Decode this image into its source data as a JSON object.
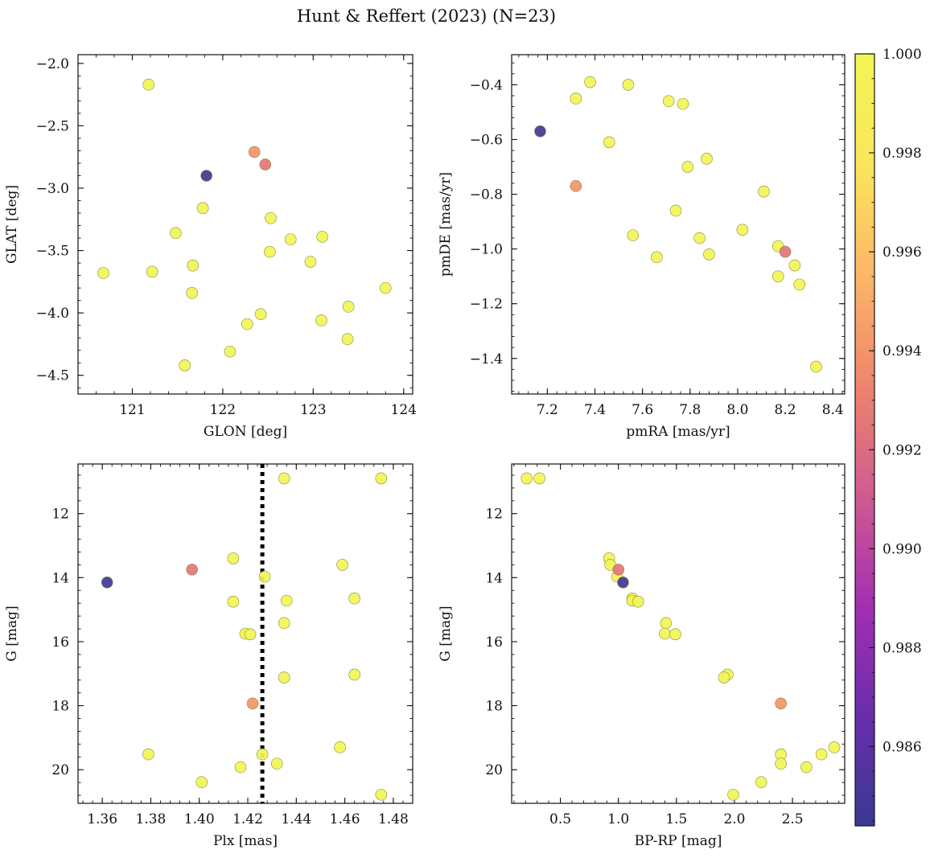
{
  "figure": {
    "title": "Hunt & Reffert (2023) (N=23)"
  },
  "colorbar": {
    "vmin": 0.9844,
    "vmax": 1.0,
    "ticks": [
      0.986,
      0.988,
      0.99,
      0.992,
      0.994,
      0.996,
      0.998,
      1.0
    ],
    "tick_labels": [
      "0.986",
      "0.988",
      "0.990",
      "0.992",
      "0.994",
      "0.996",
      "0.998",
      "1.000"
    ],
    "colormap": "plasma",
    "color_stops": [
      "#3a3991",
      "#6a2eac",
      "#a32fb3",
      "#d05b90",
      "#ee856c",
      "#fdb667",
      "#fae65a",
      "#f2f556"
    ]
  },
  "chart_data": [
    {
      "type": "scatter",
      "xlabel": "GLON [deg]",
      "ylabel": "GLAT [deg]",
      "xlim": [
        120.4,
        124.1
      ],
      "ylim": [
        -4.65,
        -1.93
      ],
      "yinvert": false,
      "xticks": [
        121,
        122,
        123,
        124
      ],
      "yticks": [
        -2.0,
        -2.5,
        -3.0,
        -3.5,
        -4.0,
        -4.5
      ],
      "x_tick_labels": [
        "121",
        "122",
        "123",
        "124"
      ],
      "y_tick_labels": [
        "−2.0",
        "−2.5",
        "−3.0",
        "−3.5",
        "−4.0",
        "−4.5"
      ],
      "x": [
        121.18,
        122.35,
        122.47,
        121.82,
        121.78,
        122.53,
        121.48,
        122.75,
        123.1,
        122.52,
        120.68,
        121.22,
        121.67,
        122.97,
        121.66,
        123.8,
        123.39,
        122.42,
        122.27,
        123.09,
        123.38,
        122.08,
        121.58
      ],
      "y": [
        -2.17,
        -2.71,
        -2.81,
        -2.9,
        -3.16,
        -3.24,
        -3.36,
        -3.41,
        -3.39,
        -3.51,
        -3.68,
        -3.67,
        -3.62,
        -3.59,
        -3.84,
        -3.8,
        -3.95,
        -4.01,
        -4.09,
        -4.06,
        -4.21,
        -4.31,
        -4.42
      ],
      "c": [
        1.0,
        0.994,
        0.9925,
        0.9846,
        1.0,
        1.0,
        1.0,
        1.0,
        1.0,
        1.0,
        1.0,
        1.0,
        1.0,
        1.0,
        1.0,
        1.0,
        1.0,
        1.0,
        1.0,
        1.0,
        1.0,
        1.0,
        1.0
      ],
      "vline": null
    },
    {
      "type": "scatter",
      "xlabel": "pmRA [mas/yr]",
      "ylabel": "pmDE [mas/yr]",
      "xlim": [
        7.05,
        8.45
      ],
      "ylim": [
        -1.53,
        -0.29
      ],
      "yinvert": false,
      "xticks": [
        7.2,
        7.4,
        7.6,
        7.8,
        8.0,
        8.2,
        8.4
      ],
      "yticks": [
        -0.4,
        -0.6,
        -0.8,
        -1.0,
        -1.2,
        -1.4
      ],
      "x_tick_labels": [
        "7.2",
        "7.4",
        "7.6",
        "7.8",
        "8.0",
        "8.2",
        "8.4"
      ],
      "y_tick_labels": [
        "−0.4",
        "−0.6",
        "−0.8",
        "−1.0",
        "−1.2",
        "−1.4"
      ],
      "x": [
        7.38,
        7.54,
        7.32,
        7.71,
        7.77,
        7.17,
        7.46,
        7.87,
        7.79,
        7.32,
        8.11,
        7.74,
        8.02,
        7.56,
        7.84,
        8.17,
        8.2,
        7.88,
        7.66,
        8.24,
        8.17,
        8.26,
        8.33
      ],
      "y": [
        -0.39,
        -0.4,
        -0.45,
        -0.46,
        -0.47,
        -0.57,
        -0.61,
        -0.67,
        -0.7,
        -0.77,
        -0.79,
        -0.86,
        -0.93,
        -0.95,
        -0.96,
        -0.99,
        -1.01,
        -1.02,
        -1.03,
        -1.06,
        -1.1,
        -1.13,
        -1.43
      ],
      "c": [
        1.0,
        1.0,
        1.0,
        1.0,
        1.0,
        0.9846,
        1.0,
        1.0,
        1.0,
        0.994,
        1.0,
        1.0,
        1.0,
        1.0,
        1.0,
        1.0,
        0.9925,
        1.0,
        1.0,
        1.0,
        1.0,
        1.0,
        1.0
      ],
      "vline": null
    },
    {
      "type": "scatter",
      "xlabel": "Plx [mas]",
      "ylabel": "G [mag]",
      "xlim": [
        1.35,
        1.488
      ],
      "ylim": [
        21.05,
        10.45
      ],
      "yinvert": true,
      "xticks": [
        1.36,
        1.38,
        1.4,
        1.42,
        1.44,
        1.46,
        1.48
      ],
      "yticks": [
        12,
        14,
        16,
        18,
        20
      ],
      "x_tick_labels": [
        "1.36",
        "1.38",
        "1.40",
        "1.42",
        "1.44",
        "1.46",
        "1.48"
      ],
      "y_tick_labels": [
        "12",
        "14",
        "16",
        "18",
        "20"
      ],
      "x": [
        1.435,
        1.475,
        1.414,
        1.459,
        1.397,
        1.427,
        1.362,
        1.414,
        1.436,
        1.464,
        1.435,
        1.419,
        1.421,
        1.464,
        1.435,
        1.422,
        1.379,
        1.458,
        1.426,
        1.432,
        1.417,
        1.401,
        1.475
      ],
      "y": [
        10.9,
        10.9,
        13.4,
        13.6,
        13.75,
        13.97,
        14.15,
        14.75,
        14.72,
        14.65,
        15.42,
        15.75,
        15.77,
        17.03,
        17.12,
        17.93,
        19.52,
        19.3,
        19.52,
        19.81,
        19.92,
        20.39,
        20.78
      ],
      "c": [
        1.0,
        1.0,
        1.0,
        1.0,
        0.9925,
        1.0,
        0.9846,
        1.0,
        1.0,
        1.0,
        1.0,
        1.0,
        1.0,
        1.0,
        1.0,
        0.994,
        1.0,
        1.0,
        1.0,
        1.0,
        1.0,
        1.0,
        1.0
      ],
      "vline": 1.426
    },
    {
      "type": "scatter",
      "xlabel": "BP-RP [mag]",
      "ylabel": "G [mag]",
      "xlim": [
        0.08,
        2.95
      ],
      "ylim": [
        21.05,
        10.45
      ],
      "yinvert": true,
      "xticks": [
        0.5,
        1.0,
        1.5,
        2.0,
        2.5
      ],
      "yticks": [
        12,
        14,
        16,
        18,
        20
      ],
      "x_tick_labels": [
        "0.5",
        "1.0",
        "1.5",
        "2.0",
        "2.5"
      ],
      "y_tick_labels": [
        "12",
        "14",
        "16",
        "18",
        "20"
      ],
      "x": [
        0.21,
        0.32,
        0.92,
        0.93,
        1.0,
        0.99,
        1.04,
        1.12,
        1.12,
        1.17,
        1.41,
        1.4,
        1.49,
        1.94,
        1.91,
        2.4,
        2.4,
        2.86,
        2.4,
        2.75,
        2.62,
        2.23,
        1.99
      ],
      "y": [
        10.9,
        10.9,
        13.4,
        13.6,
        13.75,
        13.97,
        14.15,
        14.65,
        14.72,
        14.75,
        15.42,
        15.75,
        15.77,
        17.03,
        17.12,
        17.93,
        19.52,
        19.3,
        19.81,
        19.52,
        19.92,
        20.39,
        20.78
      ],
      "c": [
        1.0,
        1.0,
        1.0,
        1.0,
        0.9925,
        1.0,
        0.9846,
        1.0,
        1.0,
        1.0,
        1.0,
        1.0,
        1.0,
        1.0,
        1.0,
        0.994,
        1.0,
        1.0,
        1.0,
        1.0,
        1.0,
        1.0,
        1.0
      ],
      "vline": null
    }
  ]
}
